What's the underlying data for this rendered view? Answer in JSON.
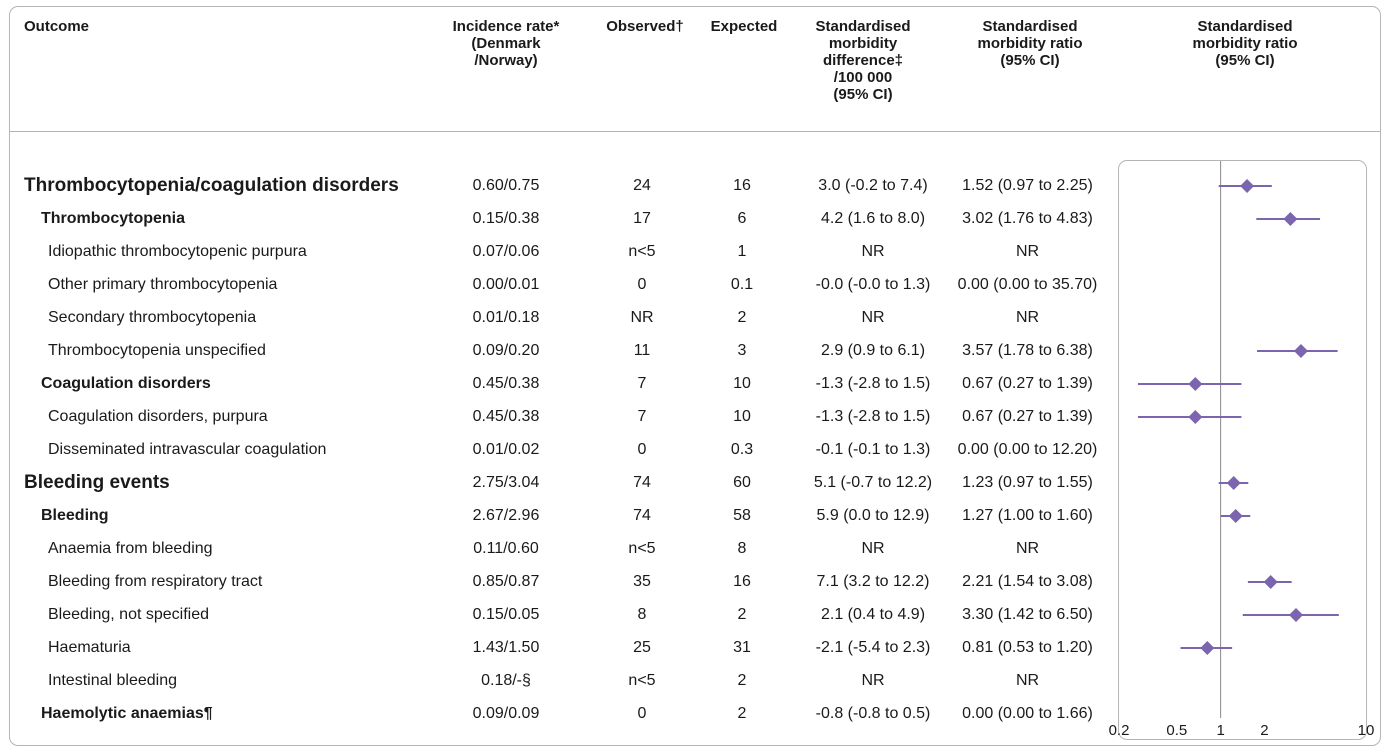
{
  "headers": {
    "outcome": "Outcome",
    "incidence": "Incidence rate*\n(Denmark\n/Norway)",
    "observed": "Observed†",
    "expected": "Expected",
    "smd": "Standardised\nmorbidity\ndifference‡\n/100 000\n(95% CI)",
    "smr": "Standardised\nmorbidity ratio\n(95% CI)",
    "plot": "Standardised\nmorbidity ratio\n(95% CI)"
  },
  "rows": [
    {
      "name": "Thrombocytopenia/coagulation disorders",
      "level": 0,
      "incidence": "0.60/0.75",
      "observed": "24",
      "expected": "16",
      "smd": "3.0 (-0.2 to 7.4)",
      "smr": "1.52 (0.97 to 2.25)"
    },
    {
      "name": "Thrombocytopenia",
      "level": 1,
      "incidence": "0.15/0.38",
      "observed": "17",
      "expected": "6",
      "smd": "4.2 (1.6 to 8.0)",
      "smr": "3.02 (1.76 to 4.83)"
    },
    {
      "name": "Idiopathic thrombocytopenic purpura",
      "level": 2,
      "incidence": "0.07/0.06",
      "observed": "n<5",
      "expected": "1",
      "smd": "NR",
      "smr": "NR"
    },
    {
      "name": "Other primary thrombocytopenia",
      "level": 2,
      "incidence": "0.00/0.01",
      "observed": "0",
      "expected": "0.1",
      "smd": "-0.0 (-0.0 to 1.3)",
      "smr": "0.00 (0.00 to 35.70)"
    },
    {
      "name": "Secondary thrombocytopenia",
      "level": 2,
      "incidence": "0.01/0.18",
      "observed": "NR",
      "expected": "2",
      "smd": "NR",
      "smr": "NR"
    },
    {
      "name": "Thrombocytopenia unspecified",
      "level": 2,
      "incidence": "0.09/0.20",
      "observed": "11",
      "expected": "3",
      "smd": "2.9 (0.9 to 6.1)",
      "smr": "3.57 (1.78 to 6.38)"
    },
    {
      "name": "Coagulation disorders",
      "level": 1,
      "incidence": "0.45/0.38",
      "observed": "7",
      "expected": "10",
      "smd": "-1.3 (-2.8 to 1.5)",
      "smr": "0.67 (0.27 to 1.39)"
    },
    {
      "name": "Coagulation disorders, purpura",
      "level": 2,
      "incidence": "0.45/0.38",
      "observed": "7",
      "expected": "10",
      "smd": "-1.3 (-2.8 to 1.5)",
      "smr": "0.67 (0.27 to 1.39)"
    },
    {
      "name": "Disseminated intravascular coagulation",
      "level": 2,
      "incidence": "0.01/0.02",
      "observed": "0",
      "expected": "0.3",
      "smd": "-0.1 (-0.1 to 1.3)",
      "smr": "0.00 (0.00 to 12.20)"
    },
    {
      "name": "Bleeding events",
      "level": 0,
      "incidence": "2.75/3.04",
      "observed": "74",
      "expected": "60",
      "smd": "5.1 (-0.7 to 12.2)",
      "smr": "1.23 (0.97 to 1.55)"
    },
    {
      "name": "Bleeding",
      "level": 1,
      "incidence": "2.67/2.96",
      "observed": "74",
      "expected": "58",
      "smd": "5.9 (0.0 to 12.9)",
      "smr": "1.27 (1.00 to 1.60)"
    },
    {
      "name": "Anaemia from bleeding",
      "level": 2,
      "incidence": "0.11/0.60",
      "observed": "n<5",
      "expected": "8",
      "smd": "NR",
      "smr": "NR"
    },
    {
      "name": "Bleeding from respiratory tract",
      "level": 2,
      "incidence": "0.85/0.87",
      "observed": "35",
      "expected": "16",
      "smd": "7.1 (3.2 to 12.2)",
      "smr": "2.21 (1.54 to 3.08)"
    },
    {
      "name": "Bleeding, not specified",
      "level": 2,
      "incidence": "0.15/0.05",
      "observed": "8",
      "expected": "2",
      "smd": "2.1 (0.4 to 4.9)",
      "smr": "3.30 (1.42 to 6.50)"
    },
    {
      "name": "Haematuria",
      "level": 2,
      "incidence": "1.43/1.50",
      "observed": "25",
      "expected": "31",
      "smd": "-2.1 (-5.4 to 2.3)",
      "smr": "0.81 (0.53 to 1.20)"
    },
    {
      "name": "Intestinal bleeding",
      "level": 2,
      "incidence": "0.18/-§",
      "observed": "n<5",
      "expected": "2",
      "smd": "NR",
      "smr": "NR"
    },
    {
      "name": "Haemolytic anaemias¶",
      "level": 1,
      "incidence": "0.09/0.09",
      "observed": "0",
      "expected": "2",
      "smd": "-0.8 (-0.8 to 0.5)",
      "smr": "0.00 (0.00 to 1.66)"
    }
  ],
  "chart_data": {
    "type": "forest",
    "xscale": "log",
    "xlim": [
      0.2,
      10
    ],
    "reference_line": 1,
    "xticks": [
      "0.2",
      "0.5",
      "1",
      "2",
      "10"
    ],
    "marker_color": "#7b65ae",
    "points": [
      {
        "row": 0,
        "est": 1.52,
        "lo": 0.97,
        "hi": 2.25
      },
      {
        "row": 1,
        "est": 3.02,
        "lo": 1.76,
        "hi": 4.83
      },
      {
        "row": 5,
        "est": 3.57,
        "lo": 1.78,
        "hi": 6.38
      },
      {
        "row": 6,
        "est": 0.67,
        "lo": 0.27,
        "hi": 1.39
      },
      {
        "row": 7,
        "est": 0.67,
        "lo": 0.27,
        "hi": 1.39
      },
      {
        "row": 9,
        "est": 1.23,
        "lo": 0.97,
        "hi": 1.55
      },
      {
        "row": 10,
        "est": 1.27,
        "lo": 1.0,
        "hi": 1.6
      },
      {
        "row": 12,
        "est": 2.21,
        "lo": 1.54,
        "hi": 3.08
      },
      {
        "row": 13,
        "est": 3.3,
        "lo": 1.42,
        "hi": 6.5
      },
      {
        "row": 14,
        "est": 0.81,
        "lo": 0.53,
        "hi": 1.2
      }
    ]
  }
}
